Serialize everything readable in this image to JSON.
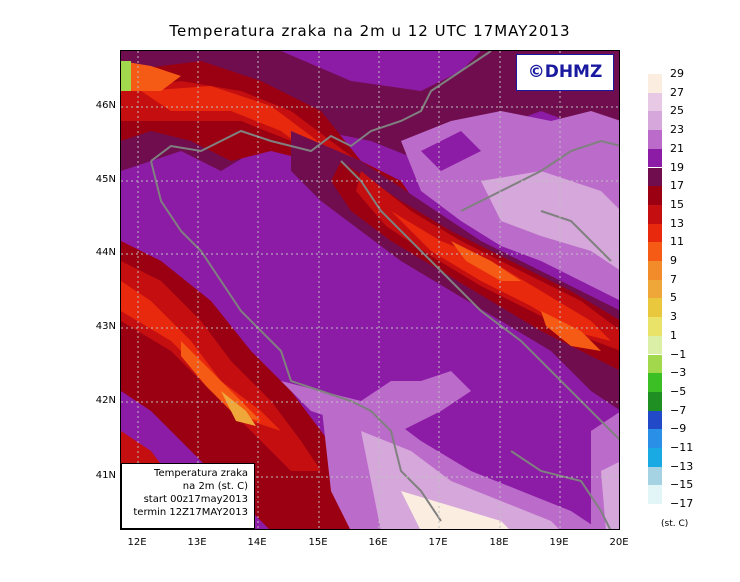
{
  "title": "Temperatura zraka na 2m u 12 UTC 17MAY2013",
  "logo": "©DHMZ",
  "info_box": {
    "line1": "Temperatura zraka",
    "line2": "na 2m (st. C)",
    "line3": "start 00z17may2013",
    "line4": "termin 12Z17MAY2013"
  },
  "lat_labels": [
    "46N",
    "45N",
    "44N",
    "43N",
    "42N",
    "41N"
  ],
  "lon_labels": [
    "12E",
    "13E",
    "14E",
    "15E",
    "16E",
    "17E",
    "18E",
    "19E",
    "20E"
  ],
  "legend": {
    "labels": [
      "29",
      "27",
      "25",
      "23",
      "21",
      "19",
      "17",
      "15",
      "13",
      "11",
      "9",
      "7",
      "5",
      "3",
      "1",
      "−1",
      "−3",
      "−5",
      "−7",
      "−9",
      "−11",
      "−13",
      "−15",
      "−17"
    ],
    "colors": [
      "#fbeee0",
      "#e7c8e5",
      "#d6a7da",
      "#bb6cca",
      "#8c1ba5",
      "#700d4e",
      "#9b0012",
      "#c40e10",
      "#e8290d",
      "#f55b14",
      "#f28b2a",
      "#efa73a",
      "#e9c83e",
      "#e9e36a",
      "#dcefa7",
      "#a2d84b",
      "#3bbf24",
      "#1f8f24",
      "#2149c8",
      "#2a8fe6",
      "#19a9e3",
      "#a6d3e3",
      "#e3f6f7"
    ],
    "units": "(st. C)"
  }
}
